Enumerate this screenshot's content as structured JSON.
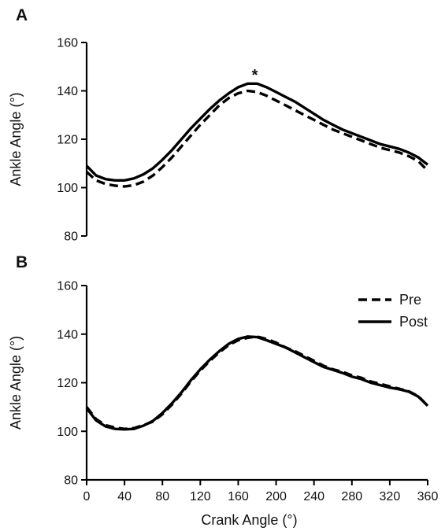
{
  "chart_data": [
    {
      "type": "line",
      "panel_label": "A",
      "ylabel": "Ankle Angle (°)",
      "xlabel": "",
      "xlim": [
        0,
        360
      ],
      "ylim": [
        80,
        160
      ],
      "yticks": [
        80,
        100,
        120,
        140,
        160
      ],
      "xticks": [],
      "grid": false,
      "annotations": [
        {
          "text": "*",
          "x": 180,
          "y": 145
        }
      ],
      "series": [
        {
          "style": "dashed",
          "x": [
            0,
            10,
            20,
            30,
            40,
            50,
            60,
            70,
            80,
            90,
            100,
            110,
            120,
            130,
            140,
            150,
            160,
            170,
            180,
            190,
            200,
            210,
            220,
            230,
            240,
            250,
            260,
            270,
            280,
            290,
            300,
            310,
            320,
            330,
            340,
            350,
            360
          ],
          "y": [
            106.5,
            103,
            101.5,
            100.8,
            100.5,
            101,
            102.5,
            105,
            108.5,
            112.5,
            117,
            121.5,
            126,
            130,
            134,
            137,
            139,
            140,
            139.5,
            138,
            136,
            134,
            132,
            130,
            128,
            126,
            124,
            122.5,
            121,
            119.5,
            118,
            116.5,
            115.5,
            114.5,
            113,
            111,
            107
          ]
        },
        {
          "style": "solid",
          "x": [
            0,
            10,
            20,
            30,
            40,
            50,
            60,
            70,
            80,
            90,
            100,
            110,
            120,
            130,
            140,
            150,
            160,
            170,
            180,
            190,
            200,
            210,
            220,
            230,
            240,
            250,
            260,
            270,
            280,
            290,
            300,
            310,
            320,
            330,
            340,
            350,
            360
          ],
          "y": [
            109,
            105,
            103.5,
            103,
            103,
            103.8,
            105.5,
            108,
            111.5,
            115.5,
            120,
            124.5,
            128.5,
            132.5,
            136,
            139,
            141.5,
            143,
            143,
            141.5,
            139.5,
            137.5,
            135.5,
            133,
            130.5,
            128,
            126,
            124,
            122.5,
            121,
            119.5,
            118,
            117,
            116,
            114.5,
            112.5,
            109.5
          ]
        }
      ]
    },
    {
      "type": "line",
      "panel_label": "B",
      "ylabel": "Ankle Angle (°)",
      "xlabel": "Crank Angle (°)",
      "xlim": [
        0,
        360
      ],
      "ylim": [
        80,
        160
      ],
      "yticks": [
        80,
        100,
        120,
        140,
        160
      ],
      "xticks": [
        0,
        40,
        80,
        120,
        160,
        200,
        240,
        280,
        320,
        360
      ],
      "grid": false,
      "legend_position": "top-right",
      "series": [
        {
          "name": "Pre",
          "style": "dashed",
          "x": [
            0,
            10,
            20,
            30,
            40,
            50,
            60,
            70,
            80,
            90,
            100,
            110,
            120,
            130,
            140,
            150,
            160,
            170,
            180,
            190,
            200,
            210,
            220,
            230,
            240,
            250,
            260,
            270,
            280,
            290,
            300,
            310,
            320,
            330,
            340,
            350,
            360
          ],
          "y": [
            110,
            105,
            102.5,
            101.5,
            101,
            101.3,
            102.5,
            104,
            107,
            111,
            115.5,
            120.5,
            125,
            129,
            132.5,
            135.5,
            137.5,
            138.5,
            139,
            138,
            136.5,
            134.5,
            133,
            131,
            129,
            127,
            125.5,
            124.5,
            123,
            122,
            120.5,
            119.5,
            118.5,
            117.5,
            116.5,
            114.5,
            110.5
          ]
        },
        {
          "name": "Post",
          "style": "solid",
          "x": [
            0,
            10,
            20,
            30,
            40,
            50,
            60,
            70,
            80,
            90,
            100,
            110,
            120,
            130,
            140,
            150,
            160,
            170,
            180,
            190,
            200,
            210,
            220,
            230,
            240,
            250,
            260,
            270,
            280,
            290,
            300,
            310,
            320,
            330,
            340,
            350,
            360
          ],
          "y": [
            109.5,
            104.5,
            102,
            101,
            100.8,
            101,
            102.3,
            104.3,
            107.5,
            111.5,
            116,
            121,
            125.5,
            129.5,
            133,
            136,
            138,
            139,
            138.8,
            137.5,
            136,
            134.5,
            132.5,
            130.5,
            128.5,
            126.5,
            125.3,
            124,
            122.5,
            121.5,
            120,
            119,
            118,
            117.3,
            116.3,
            114.3,
            110.5
          ]
        }
      ]
    }
  ]
}
